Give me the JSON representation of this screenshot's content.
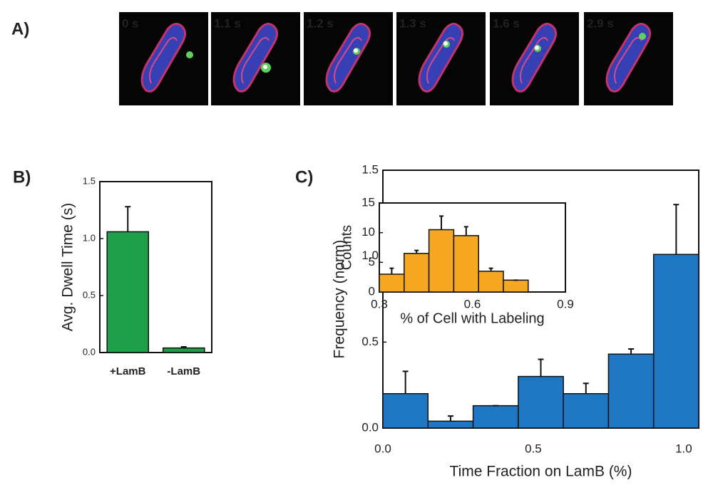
{
  "figure_a": {
    "panel_label": "A)",
    "label_color": "#e8202a",
    "frames": [
      {
        "label": "0 s"
      },
      {
        "label": "1.1 s"
      },
      {
        "label": "1.2 s"
      },
      {
        "label": "1.3 s"
      },
      {
        "label": "1.6 s"
      },
      {
        "label": "2.9 s"
      }
    ]
  },
  "chart_data": [
    {
      "type": "bar",
      "panel_label": "B)",
      "ylabel": "Avg. Dwell Time (s)",
      "categories": [
        "+LamB",
        "-LamB"
      ],
      "category_color": "#2e3192",
      "values": [
        1.06,
        0.04
      ],
      "errors": [
        0.22,
        0.01
      ],
      "color": "#1ea04b",
      "ylim": [
        0,
        1.5
      ],
      "yticks": [
        {
          "value": 0,
          "label": "0.0"
        },
        {
          "value": 0.5,
          "label": "0.5"
        },
        {
          "value": 1,
          "label": "1.0"
        },
        {
          "value": 1.5,
          "label": "1.5"
        }
      ]
    },
    {
      "type": "histogram",
      "panel_label": "C)",
      "xlabel": "Time Fraction on LamB (%)",
      "ylabel": "Frequency (norm)",
      "bins": [
        0,
        0.15,
        0.3,
        0.45,
        0.6,
        0.75,
        0.9,
        1.05
      ],
      "values": [
        0.2,
        0.04,
        0.13,
        0.3,
        0.2,
        0.43,
        1.01
      ],
      "errors": [
        0.13,
        0.03,
        0,
        0.1,
        0.06,
        0.03,
        0.29
      ],
      "color": "#1f77c4",
      "xlim": [
        0,
        1.05
      ],
      "xticks": [
        {
          "value": 0,
          "label": "0.0"
        },
        {
          "value": 0.5,
          "label": "0.5"
        },
        {
          "value": 1,
          "label": "1.0"
        }
      ],
      "ylim": [
        0,
        1.5
      ],
      "yticks": [
        {
          "value": 0,
          "label": "0.0"
        },
        {
          "value": 0.5,
          "label": "0.5"
        },
        {
          "value": 1,
          "label": "1.0"
        },
        {
          "value": 1.5,
          "label": "1.5"
        }
      ]
    },
    {
      "type": "histogram",
      "xlabel": "% of Cell with Labeling",
      "ylabel": "Counts",
      "bins": [
        0.3,
        0.38,
        0.46,
        0.54,
        0.62,
        0.7,
        0.78
      ],
      "values": [
        3,
        6.5,
        10.5,
        9.5,
        3.5,
        2
      ],
      "errors": [
        1,
        0.5,
        2.3,
        1.5,
        0.5,
        0
      ],
      "color": "#f7a823",
      "xlim": [
        0.3,
        0.9
      ],
      "xticks": [
        0.3,
        0.6,
        0.9
      ],
      "ylim": [
        0,
        15
      ],
      "yticks": [
        0,
        5,
        10,
        15
      ]
    }
  ]
}
